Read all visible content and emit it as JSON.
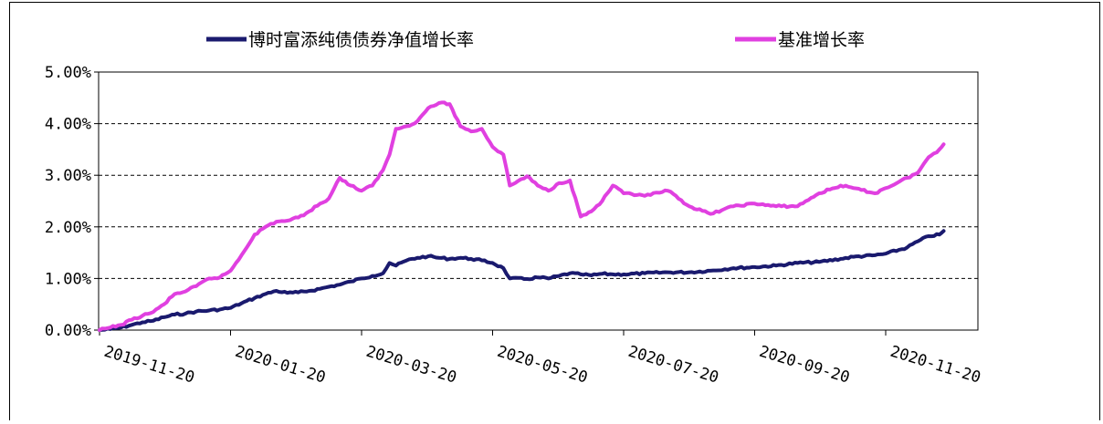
{
  "chart_data": {
    "type": "line",
    "title": "",
    "xlabel": "",
    "ylabel": "",
    "ylim": [
      0,
      5
    ],
    "y_ticks": [
      "0.00%",
      "1.00%",
      "2.00%",
      "3.00%",
      "4.00%",
      "5.00%"
    ],
    "x_ticks": [
      "2019-11-20",
      "2020-01-20",
      "2020-03-20",
      "2020-05-20",
      "2020-07-20",
      "2020-09-20",
      "2020-11-20"
    ],
    "x_range": [
      "2019-11-20",
      "2020-12-17"
    ],
    "grid": "horizontal dashed",
    "legend_position": "top",
    "series": [
      {
        "name": "博时富添纯债债券净值增长率",
        "color": "#1a1a6e",
        "points": [
          [
            "2019-11-20",
            0.0
          ],
          [
            "2019-11-25",
            0.02
          ],
          [
            "2019-11-30",
            0.05
          ],
          [
            "2019-12-05",
            0.1
          ],
          [
            "2019-12-10",
            0.15
          ],
          [
            "2019-12-15",
            0.18
          ],
          [
            "2019-12-20",
            0.25
          ],
          [
            "2019-12-25",
            0.3
          ],
          [
            "2019-12-30",
            0.32
          ],
          [
            "2020-01-04",
            0.36
          ],
          [
            "2020-01-10",
            0.38
          ],
          [
            "2020-01-15",
            0.4
          ],
          [
            "2020-01-20",
            0.43
          ],
          [
            "2020-01-25",
            0.52
          ],
          [
            "2020-01-31",
            0.62
          ],
          [
            "2020-02-05",
            0.7
          ],
          [
            "2020-02-10",
            0.76
          ],
          [
            "2020-02-15",
            0.72
          ],
          [
            "2020-02-20",
            0.73
          ],
          [
            "2020-02-25",
            0.76
          ],
          [
            "2020-03-01",
            0.8
          ],
          [
            "2020-03-05",
            0.84
          ],
          [
            "2020-03-10",
            0.88
          ],
          [
            "2020-03-15",
            0.94
          ],
          [
            "2020-03-20",
            1.0
          ],
          [
            "2020-03-25",
            1.05
          ],
          [
            "2020-03-30",
            1.1
          ],
          [
            "2020-04-02",
            1.3
          ],
          [
            "2020-04-05",
            1.25
          ],
          [
            "2020-04-10",
            1.35
          ],
          [
            "2020-04-15",
            1.4
          ],
          [
            "2020-04-20",
            1.43
          ],
          [
            "2020-04-25",
            1.4
          ],
          [
            "2020-04-30",
            1.38
          ],
          [
            "2020-05-05",
            1.4
          ],
          [
            "2020-05-10",
            1.38
          ],
          [
            "2020-05-15",
            1.35
          ],
          [
            "2020-05-20",
            1.3
          ],
          [
            "2020-05-25",
            1.2
          ],
          [
            "2020-05-28",
            1.0
          ],
          [
            "2020-06-05",
            0.99
          ],
          [
            "2020-06-10",
            1.02
          ],
          [
            "2020-06-15",
            1.0
          ],
          [
            "2020-06-20",
            1.05
          ],
          [
            "2020-06-25",
            1.1
          ],
          [
            "2020-06-30",
            1.08
          ],
          [
            "2020-07-05",
            1.06
          ],
          [
            "2020-07-10",
            1.09
          ],
          [
            "2020-07-15",
            1.08
          ],
          [
            "2020-07-20",
            1.08
          ],
          [
            "2020-07-30",
            1.1
          ],
          [
            "2020-08-10",
            1.12
          ],
          [
            "2020-08-20",
            1.12
          ],
          [
            "2020-08-30",
            1.15
          ],
          [
            "2020-09-10",
            1.2
          ],
          [
            "2020-09-20",
            1.22
          ],
          [
            "2020-09-30",
            1.25
          ],
          [
            "2020-10-10",
            1.3
          ],
          [
            "2020-10-20",
            1.32
          ],
          [
            "2020-10-30",
            1.38
          ],
          [
            "2020-11-05",
            1.42
          ],
          [
            "2020-11-15",
            1.45
          ],
          [
            "2020-11-20",
            1.48
          ],
          [
            "2020-11-30",
            1.6
          ],
          [
            "2020-12-05",
            1.72
          ],
          [
            "2020-12-10",
            1.82
          ],
          [
            "2020-12-15",
            1.85
          ],
          [
            "2020-12-17",
            1.92
          ]
        ]
      },
      {
        "name": "基准增长率",
        "color": "#e040e0",
        "points": [
          [
            "2019-11-20",
            0.0
          ],
          [
            "2019-11-25",
            0.05
          ],
          [
            "2019-11-30",
            0.1
          ],
          [
            "2019-12-05",
            0.2
          ],
          [
            "2019-12-10",
            0.28
          ],
          [
            "2019-12-15",
            0.35
          ],
          [
            "2019-12-20",
            0.5
          ],
          [
            "2019-12-25",
            0.7
          ],
          [
            "2019-12-30",
            0.75
          ],
          [
            "2020-01-04",
            0.85
          ],
          [
            "2020-01-10",
            1.0
          ],
          [
            "2020-01-15",
            1.02
          ],
          [
            "2020-01-20",
            1.15
          ],
          [
            "2020-01-25",
            1.45
          ],
          [
            "2020-01-31",
            1.85
          ],
          [
            "2020-02-05",
            2.0
          ],
          [
            "2020-02-10",
            2.1
          ],
          [
            "2020-02-15",
            2.12
          ],
          [
            "2020-02-20",
            2.18
          ],
          [
            "2020-02-25",
            2.3
          ],
          [
            "2020-03-01",
            2.45
          ],
          [
            "2020-03-05",
            2.55
          ],
          [
            "2020-03-10",
            2.95
          ],
          [
            "2020-03-15",
            2.8
          ],
          [
            "2020-03-20",
            2.7
          ],
          [
            "2020-03-25",
            2.8
          ],
          [
            "2020-03-30",
            3.1
          ],
          [
            "2020-04-02",
            3.4
          ],
          [
            "2020-04-05",
            3.9
          ],
          [
            "2020-04-10",
            3.95
          ],
          [
            "2020-04-15",
            4.05
          ],
          [
            "2020-04-20",
            4.3
          ],
          [
            "2020-04-25",
            4.4
          ],
          [
            "2020-04-30",
            4.38
          ],
          [
            "2020-05-05",
            3.95
          ],
          [
            "2020-05-10",
            3.85
          ],
          [
            "2020-05-15",
            3.9
          ],
          [
            "2020-05-20",
            3.55
          ],
          [
            "2020-05-25",
            3.4
          ],
          [
            "2020-05-28",
            2.8
          ],
          [
            "2020-06-05",
            2.98
          ],
          [
            "2020-06-10",
            2.8
          ],
          [
            "2020-06-15",
            2.7
          ],
          [
            "2020-06-20",
            2.85
          ],
          [
            "2020-06-25",
            2.9
          ],
          [
            "2020-06-30",
            2.2
          ],
          [
            "2020-07-05",
            2.3
          ],
          [
            "2020-07-10",
            2.5
          ],
          [
            "2020-07-15",
            2.8
          ],
          [
            "2020-07-20",
            2.65
          ],
          [
            "2020-07-30",
            2.6
          ],
          [
            "2020-08-10",
            2.7
          ],
          [
            "2020-08-20",
            2.4
          ],
          [
            "2020-08-30",
            2.25
          ],
          [
            "2020-09-10",
            2.4
          ],
          [
            "2020-09-20",
            2.45
          ],
          [
            "2020-09-30",
            2.4
          ],
          [
            "2020-10-10",
            2.4
          ],
          [
            "2020-10-20",
            2.65
          ],
          [
            "2020-10-30",
            2.8
          ],
          [
            "2020-11-05",
            2.75
          ],
          [
            "2020-11-15",
            2.65
          ],
          [
            "2020-11-20",
            2.75
          ],
          [
            "2020-11-30",
            2.95
          ],
          [
            "2020-12-05",
            3.05
          ],
          [
            "2020-12-10",
            3.35
          ],
          [
            "2020-12-15",
            3.5
          ],
          [
            "2020-12-17",
            3.6
          ]
        ]
      }
    ]
  }
}
